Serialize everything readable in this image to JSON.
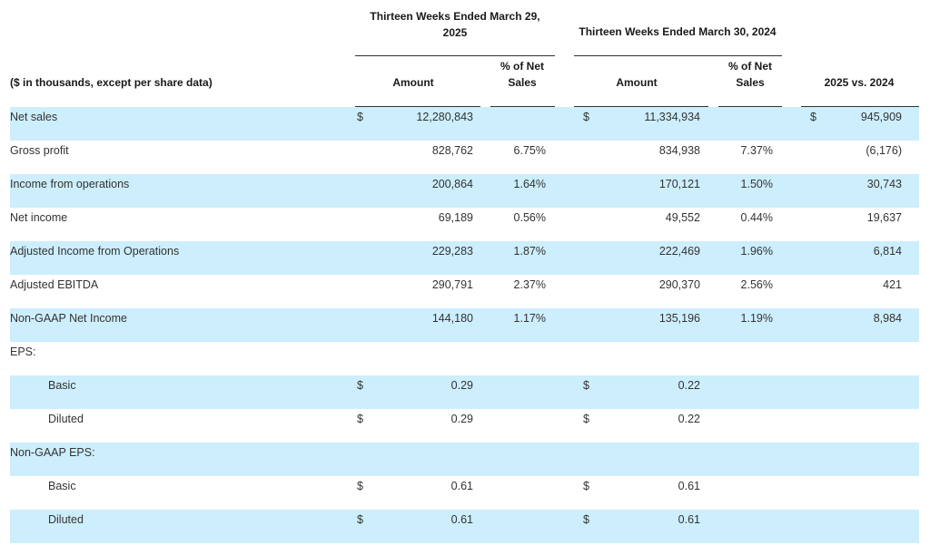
{
  "header": {
    "period_2025": "Thirteen Weeks Ended March 29, 2025",
    "period_2025_line1": "Thirteen Weeks Ended March 29,",
    "period_2025_line2": "2025",
    "period_2024": "Thirteen Weeks Ended March 30, 2024",
    "units_label": "($ in thousands, except per share data)",
    "amount_label": "Amount",
    "pct_label_line1": "% of Net",
    "pct_label_line2": "Sales",
    "comparison_label": "2025 vs. 2024"
  },
  "rows": [
    {
      "label": "Net sales",
      "d1": "$",
      "amt25": "12,280,843",
      "pct25": "",
      "d2": "$",
      "amt24": "11,334,934",
      "pct24": "",
      "d3": "$",
      "diff": "945,909"
    },
    {
      "label": "Gross profit",
      "d1": "",
      "amt25": "828,762",
      "pct25": "6.75%",
      "d2": "",
      "amt24": "834,938",
      "pct24": "7.37%",
      "d3": "",
      "diff": "(6,176)"
    },
    {
      "label": "Income from operations",
      "d1": "",
      "amt25": "200,864",
      "pct25": "1.64%",
      "d2": "",
      "amt24": "170,121",
      "pct24": "1.50%",
      "d3": "",
      "diff": "30,743"
    },
    {
      "label": "Net income",
      "d1": "",
      "amt25": "69,189",
      "pct25": "0.56%",
      "d2": "",
      "amt24": "49,552",
      "pct24": "0.44%",
      "d3": "",
      "diff": "19,637"
    },
    {
      "label": "Adjusted Income from Operations",
      "d1": "",
      "amt25": "229,283",
      "pct25": "1.87%",
      "d2": "",
      "amt24": "222,469",
      "pct24": "1.96%",
      "d3": "",
      "diff": "6,814"
    },
    {
      "label": "Adjusted EBITDA",
      "d1": "",
      "amt25": "290,791",
      "pct25": "2.37%",
      "d2": "",
      "amt24": "290,370",
      "pct24": "2.56%",
      "d3": "",
      "diff": "421"
    },
    {
      "label": "Non-GAAP Net Income",
      "d1": "",
      "amt25": "144,180",
      "pct25": "1.17%",
      "d2": "",
      "amt24": "135,196",
      "pct24": "1.19%",
      "d3": "",
      "diff": "8,984"
    },
    {
      "label": "EPS:",
      "d1": "",
      "amt25": "",
      "pct25": "",
      "d2": "",
      "amt24": "",
      "pct24": "",
      "d3": "",
      "diff": ""
    },
    {
      "label": "Basic",
      "d1": "$",
      "amt25": "0.29",
      "pct25": "",
      "d2": "$",
      "amt24": "0.22",
      "pct24": "",
      "d3": "",
      "diff": ""
    },
    {
      "label": "Diluted",
      "d1": "$",
      "amt25": "0.29",
      "pct25": "",
      "d2": "$",
      "amt24": "0.22",
      "pct24": "",
      "d3": "",
      "diff": ""
    },
    {
      "label": "Non-GAAP EPS:",
      "d1": "",
      "amt25": "",
      "pct25": "",
      "d2": "",
      "amt24": "",
      "pct24": "",
      "d3": "",
      "diff": ""
    },
    {
      "label": "Basic",
      "d1": "$",
      "amt25": "0.61",
      "pct25": "",
      "d2": "$",
      "amt24": "0.61",
      "pct24": "",
      "d3": "",
      "diff": ""
    },
    {
      "label": "Diluted",
      "d1": "$",
      "amt25": "0.61",
      "pct25": "",
      "d2": "$",
      "amt24": "0.61",
      "pct24": "",
      "d3": "",
      "diff": ""
    }
  ]
}
